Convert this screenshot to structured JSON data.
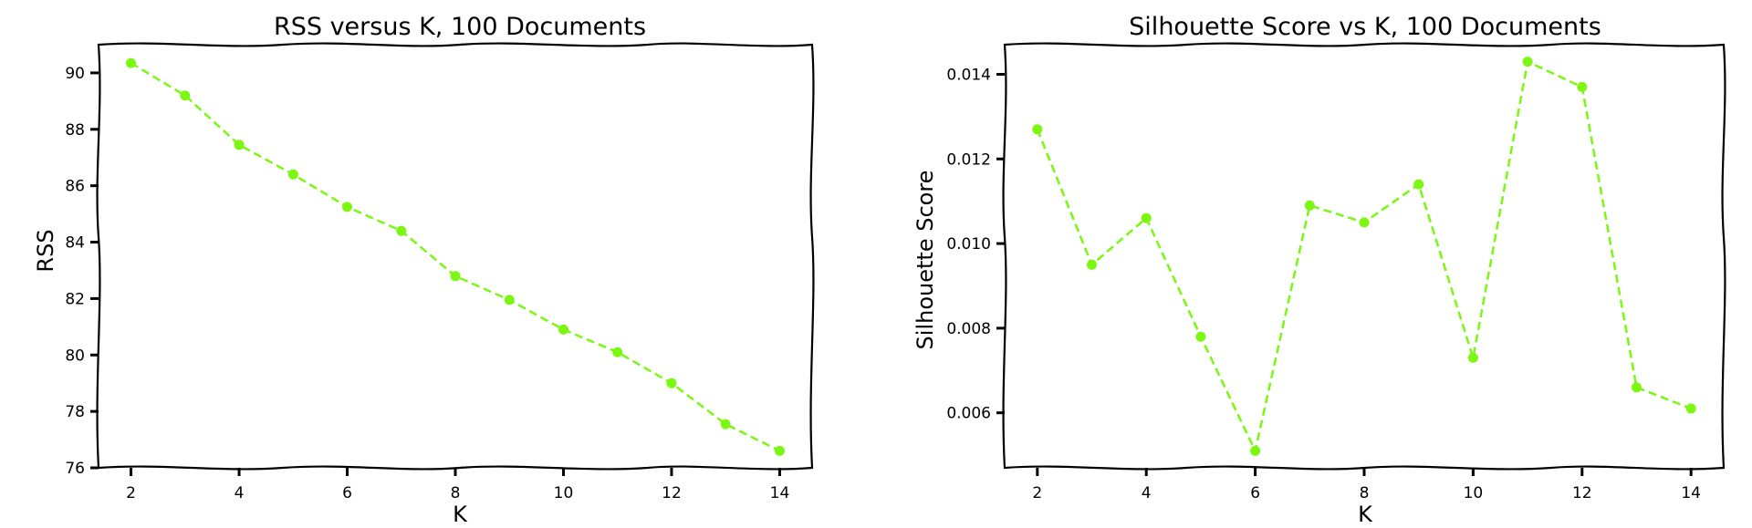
{
  "chart_data": [
    {
      "type": "line",
      "title": "RSS versus K, 100 Documents",
      "xlabel": "K",
      "ylabel": "RSS",
      "x": [
        2,
        3,
        4,
        5,
        6,
        7,
        8,
        9,
        10,
        11,
        12,
        13,
        14
      ],
      "series": [
        {
          "name": "RSS",
          "values": [
            90.35,
            89.2,
            87.45,
            86.4,
            85.25,
            84.4,
            82.8,
            81.95,
            80.9,
            80.1,
            79.0,
            77.55,
            76.6
          ]
        }
      ],
      "xlim": [
        1.4,
        14.6
      ],
      "ylim": [
        76.0,
        91.0
      ],
      "xticks": [
        2,
        4,
        6,
        8,
        10,
        12,
        14
      ],
      "yticks": [
        76,
        78,
        80,
        82,
        84,
        86,
        88,
        90
      ],
      "xtick_labels": [
        "2",
        "4",
        "6",
        "8",
        "10",
        "12",
        "14"
      ],
      "ytick_labels": [
        "76",
        "78",
        "80",
        "82",
        "84",
        "86",
        "88",
        "90"
      ],
      "color": "#7cf712",
      "grid": false
    },
    {
      "type": "line",
      "title": "Silhouette Score vs K, 100 Documents",
      "xlabel": "K",
      "ylabel": "Silhouette Score",
      "x": [
        2,
        3,
        4,
        5,
        6,
        7,
        8,
        9,
        10,
        11,
        12,
        13,
        14
      ],
      "series": [
        {
          "name": "Silhouette Score",
          "values": [
            0.0127,
            0.0095,
            0.0106,
            0.0078,
            0.0051,
            0.0109,
            0.0105,
            0.0114,
            0.0073,
            0.0143,
            0.0137,
            0.0066,
            0.0061
          ]
        }
      ],
      "xlim": [
        1.4,
        14.6
      ],
      "ylim": [
        0.0047,
        0.0147
      ],
      "xticks": [
        2,
        4,
        6,
        8,
        10,
        12,
        14
      ],
      "yticks": [
        0.006,
        0.008,
        0.01,
        0.012,
        0.014
      ],
      "xtick_labels": [
        "2",
        "4",
        "6",
        "8",
        "10",
        "12",
        "14"
      ],
      "ytick_labels": [
        "0.006",
        "0.008",
        "0.010",
        "0.012",
        "0.014"
      ],
      "color": "#7cf712",
      "grid": false
    }
  ]
}
